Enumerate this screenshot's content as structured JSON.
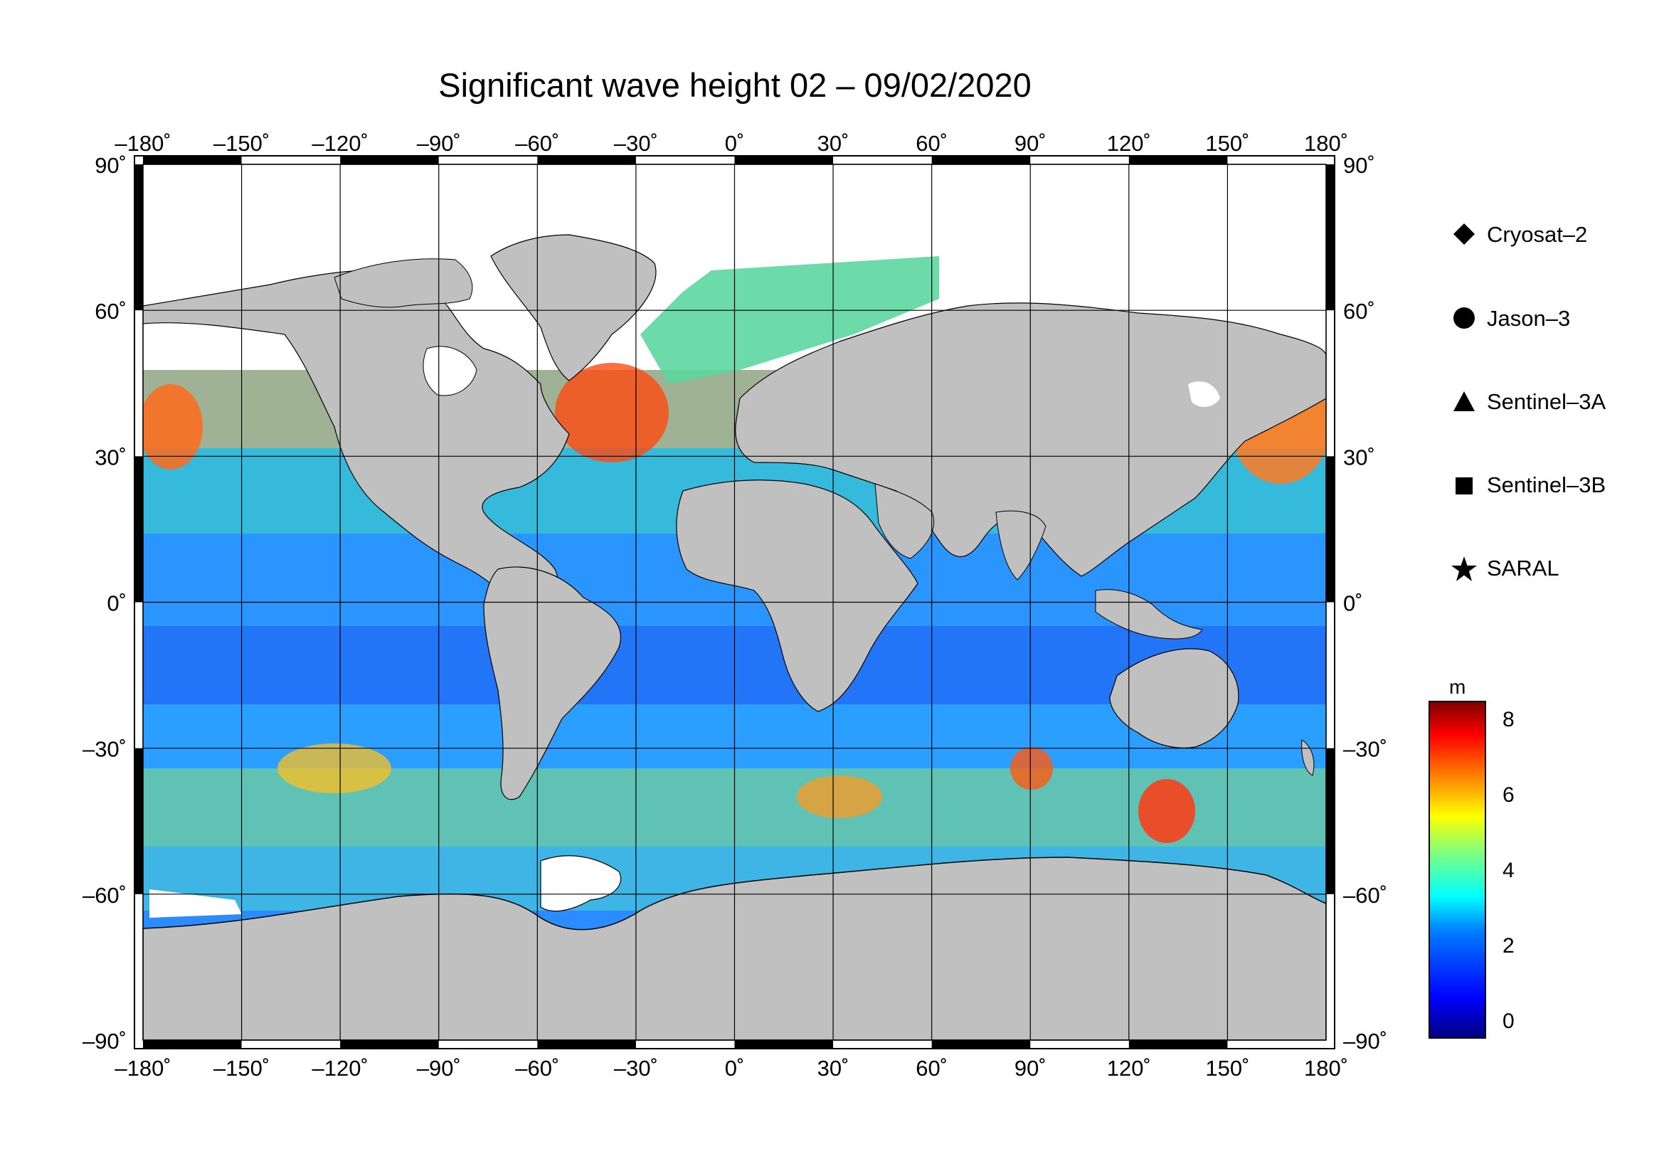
{
  "title": "Significant wave height 02 – 09/02/2020",
  "x_ticks": [
    "–180˚",
    "–150˚",
    "–120˚",
    "–90˚",
    "–60˚",
    "–30˚",
    "0˚",
    "30˚",
    "60˚",
    "90˚",
    "120˚",
    "150˚",
    "180˚"
  ],
  "y_ticks_left": [
    "90˚",
    "60˚",
    "30˚",
    "0˚",
    "–30˚",
    "–60˚",
    "–90˚"
  ],
  "y_ticks_right": [
    "90˚",
    "60˚",
    "30˚",
    "0˚",
    "–30˚",
    "–60˚",
    "–90˚"
  ],
  "map": {
    "projection": "equirectangular",
    "lon_range": [
      -180,
      180
    ],
    "lat_range": [
      -90,
      90
    ],
    "land_color": "#c0c0c0",
    "ice_color": "#ffffff",
    "grid_step_degrees": 30,
    "graticule": true
  },
  "legend": {
    "items": [
      {
        "label": "Cryosat–2",
        "symbol": "diamond"
      },
      {
        "label": "Jason–3",
        "symbol": "circle"
      },
      {
        "label": "Sentinel–3A",
        "symbol": "triangle"
      },
      {
        "label": "Sentinel–3B",
        "symbol": "square"
      },
      {
        "label": "SARAL",
        "symbol": "star"
      }
    ]
  },
  "colorbar": {
    "unit": "m",
    "ticks": [
      "8",
      "6",
      "4",
      "2",
      "0"
    ],
    "range": [
      -0.5,
      8.5
    ],
    "colormap": [
      "#00007f",
      "#0000ff",
      "#007fff",
      "#00ffff",
      "#7fff7f",
      "#ffff00",
      "#ff7f00",
      "#ff0000",
      "#7f0000"
    ]
  }
}
